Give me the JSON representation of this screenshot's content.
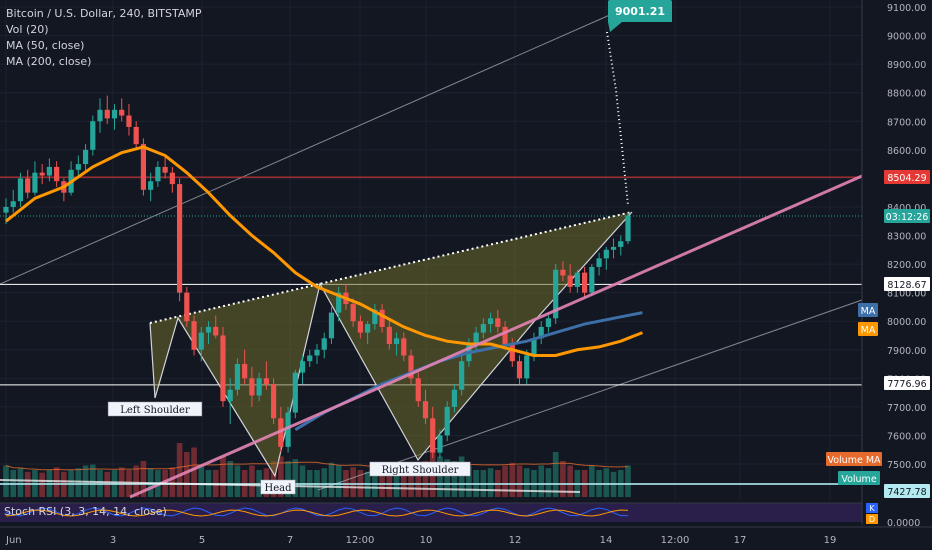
{
  "header": {
    "symbol": "Bitcoin / U.S. Dollar, 240, BITSTAMP",
    "indicators": [
      "Vol (20)",
      "MA (50, close)",
      "MA (200, close)"
    ]
  },
  "colors": {
    "background": "#131722",
    "grid": "#1e2230",
    "up": "#26a69a",
    "down": "#ef5350",
    "ma50": "#ff9800",
    "ma200": "#3d6fa8",
    "trendline": "#e384b5",
    "resistance": "#e53935",
    "target_label": "#26a69a",
    "pattern_fill": "#6b6b2a"
  },
  "chart_data": {
    "type": "candlestick",
    "title": "Bitcoin / U.S. Dollar, 240, BITSTAMP",
    "ylim": [
      7400,
      9100
    ],
    "y_ticks": [
      9100,
      9000,
      8900,
      8800,
      8700,
      8600,
      8500,
      8400,
      8300,
      8200,
      8100,
      8000,
      7900,
      7800,
      7700,
      7600,
      7500
    ],
    "x_ticks": [
      "Jun",
      "3",
      "5",
      "7",
      "12:00",
      "10",
      "12",
      "14",
      "12:00",
      "17",
      "19"
    ],
    "price_labels": [
      {
        "text": "8504.29",
        "style": "resistance"
      },
      {
        "text": "03:12:26",
        "style": "countdown"
      },
      {
        "text": "8128.67",
        "style": "level"
      },
      {
        "text": "MA",
        "style": "ma200"
      },
      {
        "text": "MA",
        "style": "ma50"
      },
      {
        "text": "7776.96",
        "style": "level"
      },
      {
        "text": "Volume MA",
        "style": "volma"
      },
      {
        "text": "Volume",
        "style": "vol"
      },
      {
        "text": "7427.78",
        "style": "level2"
      }
    ],
    "horizontal_levels": [
      8504.29,
      8128.67,
      7776.96
    ],
    "target": "9001.21",
    "annotations": [
      "Left Shoulder",
      "Head",
      "Right Shoulder"
    ],
    "stoch": {
      "label": "Stoch RSI (3, 3, 14, 14, close)",
      "tick": "0.0000",
      "k_label": "K",
      "d_label": "D"
    },
    "candles": [
      [
        8380,
        8430,
        8340,
        8400
      ],
      [
        8400,
        8460,
        8380,
        8420
      ],
      [
        8420,
        8520,
        8400,
        8500
      ],
      [
        8500,
        8530,
        8430,
        8450
      ],
      [
        8450,
        8560,
        8440,
        8520
      ],
      [
        8520,
        8550,
        8480,
        8510
      ],
      [
        8510,
        8570,
        8490,
        8540
      ],
      [
        8540,
        8560,
        8470,
        8490
      ],
      [
        8490,
        8500,
        8420,
        8450
      ],
      [
        8450,
        8560,
        8440,
        8530
      ],
      [
        8530,
        8580,
        8500,
        8550
      ],
      [
        8550,
        8620,
        8520,
        8600
      ],
      [
        8600,
        8720,
        8580,
        8700
      ],
      [
        8700,
        8780,
        8660,
        8740
      ],
      [
        8740,
        8790,
        8690,
        8710
      ],
      [
        8710,
        8760,
        8670,
        8740
      ],
      [
        8740,
        8780,
        8700,
        8720
      ],
      [
        8720,
        8760,
        8650,
        8680
      ],
      [
        8680,
        8700,
        8600,
        8620
      ],
      [
        8620,
        8640,
        8440,
        8460
      ],
      [
        8460,
        8520,
        8420,
        8490
      ],
      [
        8490,
        8560,
        8470,
        8540
      ],
      [
        8540,
        8580,
        8500,
        8520
      ],
      [
        8520,
        8540,
        8450,
        8480
      ],
      [
        8480,
        8500,
        8070,
        8100
      ],
      [
        8100,
        8120,
        7980,
        8000
      ],
      [
        8000,
        8020,
        7880,
        7900
      ],
      [
        7900,
        7980,
        7860,
        7960
      ],
      [
        7960,
        8000,
        7920,
        7980
      ],
      [
        7980,
        8020,
        7940,
        7950
      ],
      [
        7950,
        7980,
        7700,
        7720
      ],
      [
        7720,
        7800,
        7640,
        7760
      ],
      [
        7760,
        7870,
        7740,
        7850
      ],
      [
        7850,
        7900,
        7780,
        7800
      ],
      [
        7800,
        7840,
        7700,
        7740
      ],
      [
        7740,
        7820,
        7720,
        7800
      ],
      [
        7800,
        7860,
        7760,
        7780
      ],
      [
        7780,
        7800,
        7640,
        7660
      ],
      [
        7660,
        7700,
        7540,
        7560
      ],
      [
        7560,
        7700,
        7540,
        7680
      ],
      [
        7680,
        7830,
        7660,
        7820
      ],
      [
        7820,
        7880,
        7780,
        7860
      ],
      [
        7860,
        7900,
        7840,
        7880
      ],
      [
        7880,
        7920,
        7850,
        7900
      ],
      [
        7900,
        7960,
        7870,
        7940
      ],
      [
        7940,
        8050,
        7920,
        8030
      ],
      [
        8030,
        8120,
        8000,
        8100
      ],
      [
        8100,
        8130,
        8040,
        8060
      ],
      [
        8060,
        8080,
        7980,
        8000
      ],
      [
        8000,
        8020,
        7940,
        7960
      ],
      [
        7960,
        8000,
        7920,
        7990
      ],
      [
        7990,
        8060,
        7970,
        8040
      ],
      [
        8040,
        8060,
        7960,
        7980
      ],
      [
        7980,
        8000,
        7900,
        7920
      ],
      [
        7920,
        7960,
        7880,
        7940
      ],
      [
        7940,
        7960,
        7860,
        7880
      ],
      [
        7880,
        7900,
        7780,
        7800
      ],
      [
        7800,
        7820,
        7700,
        7720
      ],
      [
        7720,
        7760,
        7640,
        7660
      ],
      [
        7660,
        7700,
        7520,
        7540
      ],
      [
        7540,
        7620,
        7520,
        7600
      ],
      [
        7600,
        7720,
        7580,
        7700
      ],
      [
        7700,
        7780,
        7680,
        7760
      ],
      [
        7760,
        7880,
        7740,
        7860
      ],
      [
        7860,
        7940,
        7840,
        7920
      ],
      [
        7920,
        7980,
        7900,
        7960
      ],
      [
        7960,
        8010,
        7940,
        7990
      ],
      [
        7990,
        8030,
        7960,
        8010
      ],
      [
        8010,
        8040,
        7960,
        7980
      ],
      [
        7980,
        8000,
        7900,
        7920
      ],
      [
        7920,
        7940,
        7840,
        7860
      ],
      [
        7860,
        7880,
        7780,
        7800
      ],
      [
        7800,
        7900,
        7780,
        7880
      ],
      [
        7880,
        7960,
        7860,
        7940
      ],
      [
        7940,
        8000,
        7920,
        7980
      ],
      [
        7980,
        8020,
        7960,
        8010
      ],
      [
        8010,
        8200,
        7990,
        8180
      ],
      [
        8180,
        8210,
        8140,
        8160
      ],
      [
        8160,
        8200,
        8100,
        8120
      ],
      [
        8120,
        8180,
        8100,
        8170
      ],
      [
        8170,
        8190,
        8080,
        8100
      ],
      [
        8100,
        8200,
        8090,
        8190
      ],
      [
        8190,
        8240,
        8160,
        8220
      ],
      [
        8220,
        8260,
        8180,
        8250
      ],
      [
        8250,
        8290,
        8220,
        8260
      ],
      [
        8260,
        8300,
        8230,
        8280
      ],
      [
        8280,
        8380,
        8270,
        8370
      ]
    ],
    "ma50": [
      [
        0,
        8350
      ],
      [
        4,
        8430
      ],
      [
        8,
        8470
      ],
      [
        12,
        8540
      ],
      [
        16,
        8590
      ],
      [
        19,
        8610
      ],
      [
        22,
        8580
      ],
      [
        25,
        8520
      ],
      [
        28,
        8450
      ],
      [
        31,
        8370
      ],
      [
        34,
        8300
      ],
      [
        37,
        8240
      ],
      [
        40,
        8170
      ],
      [
        43,
        8120
      ],
      [
        46,
        8090
      ],
      [
        49,
        8060
      ],
      [
        52,
        8020
      ],
      [
        55,
        7980
      ],
      [
        58,
        7950
      ],
      [
        61,
        7930
      ],
      [
        64,
        7920
      ],
      [
        67,
        7920
      ],
      [
        70,
        7900
      ],
      [
        73,
        7880
      ],
      [
        76,
        7880
      ],
      [
        79,
        7900
      ],
      [
        82,
        7910
      ],
      [
        85,
        7930
      ],
      [
        88,
        7960
      ]
    ],
    "ma200": [
      [
        40,
        7620
      ],
      [
        44,
        7680
      ],
      [
        48,
        7730
      ],
      [
        52,
        7780
      ],
      [
        56,
        7820
      ],
      [
        60,
        7860
      ],
      [
        64,
        7890
      ],
      [
        68,
        7910
      ],
      [
        72,
        7930
      ],
      [
        76,
        7960
      ],
      [
        80,
        7990
      ],
      [
        84,
        8010
      ],
      [
        88,
        8030
      ]
    ],
    "volume": [
      0.35,
      0.3,
      0.32,
      0.28,
      0.3,
      0.27,
      0.3,
      0.33,
      0.28,
      0.3,
      0.32,
      0.35,
      0.36,
      0.3,
      0.28,
      0.3,
      0.33,
      0.3,
      0.35,
      0.4,
      0.32,
      0.3,
      0.3,
      0.33,
      0.6,
      0.5,
      0.55,
      0.35,
      0.3,
      0.3,
      0.45,
      0.4,
      0.35,
      0.3,
      0.35,
      0.3,
      0.32,
      0.4,
      0.45,
      0.4,
      0.42,
      0.35,
      0.3,
      0.3,
      0.32,
      0.38,
      0.35,
      0.3,
      0.33,
      0.3,
      0.28,
      0.3,
      0.32,
      0.35,
      0.3,
      0.32,
      0.35,
      0.38,
      0.4,
      0.55,
      0.45,
      0.42,
      0.4,
      0.45,
      0.35,
      0.3,
      0.3,
      0.32,
      0.3,
      0.35,
      0.38,
      0.35,
      0.32,
      0.3,
      0.35,
      0.32,
      0.5,
      0.4,
      0.35,
      0.3,
      0.3,
      0.35,
      0.3,
      0.32,
      0.28,
      0.3,
      0.35
    ]
  }
}
